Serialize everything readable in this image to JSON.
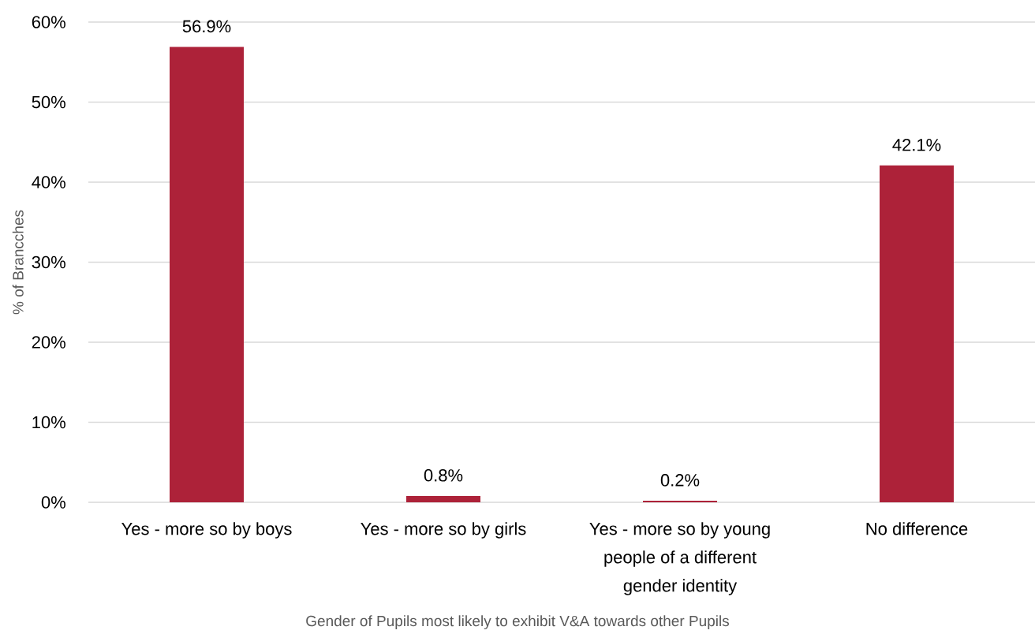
{
  "chart_data": {
    "type": "bar",
    "xlabel": "Gender of Pupils most likely to exhibit V&A towards other Pupils",
    "ylabel": "% of Brancches",
    "categories": [
      "Yes - more so by boys",
      "Yes - more so by girls",
      "Yes - more so by young people of a different gender identity",
      "No difference"
    ],
    "values": [
      56.9,
      0.8,
      0.2,
      42.1
    ],
    "color": "#ad2239",
    "value_labels": [
      "56.9%",
      "0.8%",
      "0.2%",
      "42.1%"
    ],
    "ylim": [
      0,
      60
    ],
    "yticks": [
      {
        "value": 0,
        "label": "0%"
      },
      {
        "value": 10,
        "label": "10%"
      },
      {
        "value": 20,
        "label": "20%"
      },
      {
        "value": 30,
        "label": "30%"
      },
      {
        "value": 40,
        "label": "40%"
      },
      {
        "value": 50,
        "label": "50%"
      },
      {
        "value": 60,
        "label": "60%"
      }
    ],
    "grid": "y"
  }
}
